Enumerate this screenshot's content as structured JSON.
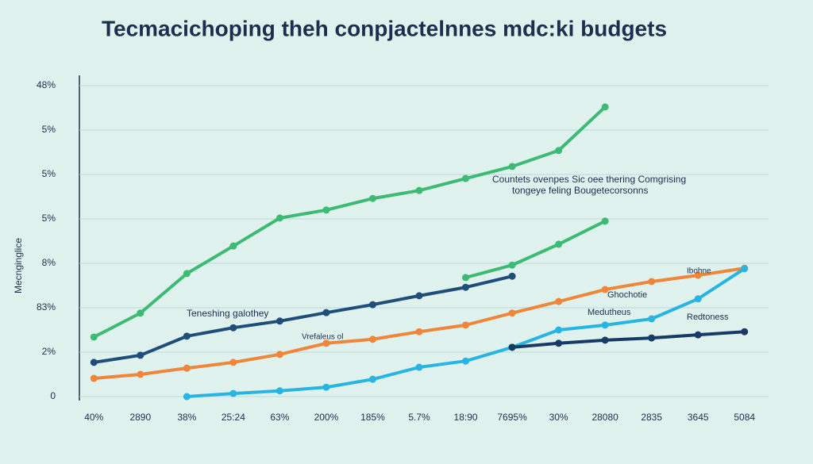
{
  "chart_data": {
    "type": "line",
    "title": "Tecmacichoping theh conpjactelnnes mdc:ki budgets",
    "y_label": "Mecnginglice",
    "categories": [
      "40%",
      "2890",
      "38%",
      "25:24",
      "63%",
      "200%",
      "185%",
      "5.7%",
      "18:90",
      "7695%",
      "30%",
      "28080",
      "2835",
      "3645",
      "5084"
    ],
    "ylim": [
      0,
      7.5
    ],
    "yticks": [
      {
        "value": 0,
        "label": "0"
      },
      {
        "value": 1,
        "label": "2%"
      },
      {
        "value": 2,
        "label": "83%"
      },
      {
        "value": 3,
        "label": "8%"
      },
      {
        "value": 4,
        "label": "5%"
      },
      {
        "value": 5,
        "label": "5%"
      },
      {
        "value": 6,
        "label": "5%"
      },
      {
        "value": 7,
        "label": "48%"
      }
    ],
    "grid": true,
    "series": [
      {
        "color": "#3dbb74",
        "values": [
          1.34,
          1.88,
          2.77,
          3.39,
          4.02,
          4.2,
          4.46,
          4.64,
          4.91,
          5.18,
          5.54,
          6.52,
          null,
          null,
          null
        ]
      },
      {
        "color": "#1f4e7a",
        "values": [
          0.77,
          0.93,
          1.36,
          1.55,
          1.7,
          1.89,
          2.07,
          2.27,
          2.46,
          2.71,
          null,
          null,
          null,
          null,
          null
        ]
      },
      {
        "color": "#3dbb74",
        "values": [
          null,
          null,
          null,
          null,
          null,
          null,
          null,
          null,
          2.68,
          2.96,
          3.43,
          3.95,
          null,
          null,
          null
        ]
      },
      {
        "color": "#f0863a",
        "values": [
          0.41,
          0.5,
          0.64,
          0.77,
          0.95,
          1.2,
          1.29,
          1.46,
          1.61,
          1.88,
          2.14,
          2.41,
          2.59,
          2.73,
          2.89
        ]
      },
      {
        "color": "#29b5e3",
        "values": [
          null,
          null,
          0,
          0.07,
          0.13,
          0.21,
          0.39,
          0.66,
          0.8,
          1.11,
          1.5,
          1.61,
          1.75,
          2.2,
          2.88
        ]
      },
      {
        "color": "#173a66",
        "values": [
          null,
          null,
          null,
          null,
          null,
          null,
          null,
          null,
          null,
          1.11,
          1.2,
          1.27,
          1.32,
          1.39,
          1.46
        ]
      }
    ],
    "annotations": [
      "Countets ovenpes Sic oee thering Comgrising",
      "tongeye feling Bougetecorsonns",
      "Teneshing galothey",
      "Vrefaleus ol",
      "Ghochotie",
      "Medutheus",
      "Redtoness",
      "Ibohne"
    ]
  }
}
